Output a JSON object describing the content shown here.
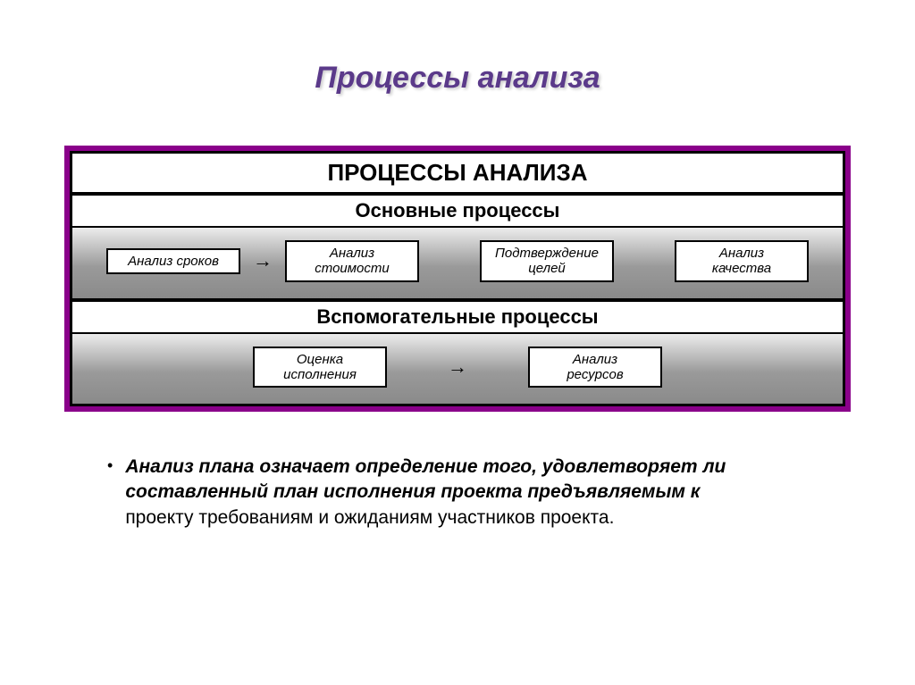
{
  "slide": {
    "title": "Процессы анализа",
    "title_color": "#5b3a8a",
    "title_fontsize": 34
  },
  "diagram": {
    "border_color": "#8a008a",
    "background_color": "#ffffff",
    "header": "ПРОЦЕССЫ АНАЛИЗА",
    "header_fontsize": 26,
    "sections": [
      {
        "title": "Основные процессы",
        "title_fontsize": 22,
        "band_gradient": [
          "#ececec",
          "#9a9a9a"
        ],
        "boxes": [
          {
            "label": "Анализ сроков"
          },
          {
            "label": "Анализ\nстоимости"
          },
          {
            "label": "Подтверждение\nцелей"
          },
          {
            "label": "Анализ\nкачества"
          }
        ],
        "arrow_after_index": 0
      },
      {
        "title": "Вспомогательные процессы",
        "title_fontsize": 22,
        "band_gradient": [
          "#ececec",
          "#9a9a9a"
        ],
        "boxes": [
          {
            "label": "Оценка\nисполнения"
          },
          {
            "label": "Анализ\nресурсов"
          }
        ],
        "arrow_after_index": 0
      }
    ],
    "box_style": {
      "background": "#ffffff",
      "border_color": "#000000",
      "font_style": "italic",
      "fontsize": 15
    }
  },
  "bullet": {
    "lead": "Анализ плана",
    "rest_italic": " означает определение того, удовлетворяет ли составленный план исполнения проекта предъявляемым к",
    "rest_plain": "проекту требованиям и ожиданиям участников проекта.",
    "fontsize": 21,
    "color": "#000000"
  }
}
